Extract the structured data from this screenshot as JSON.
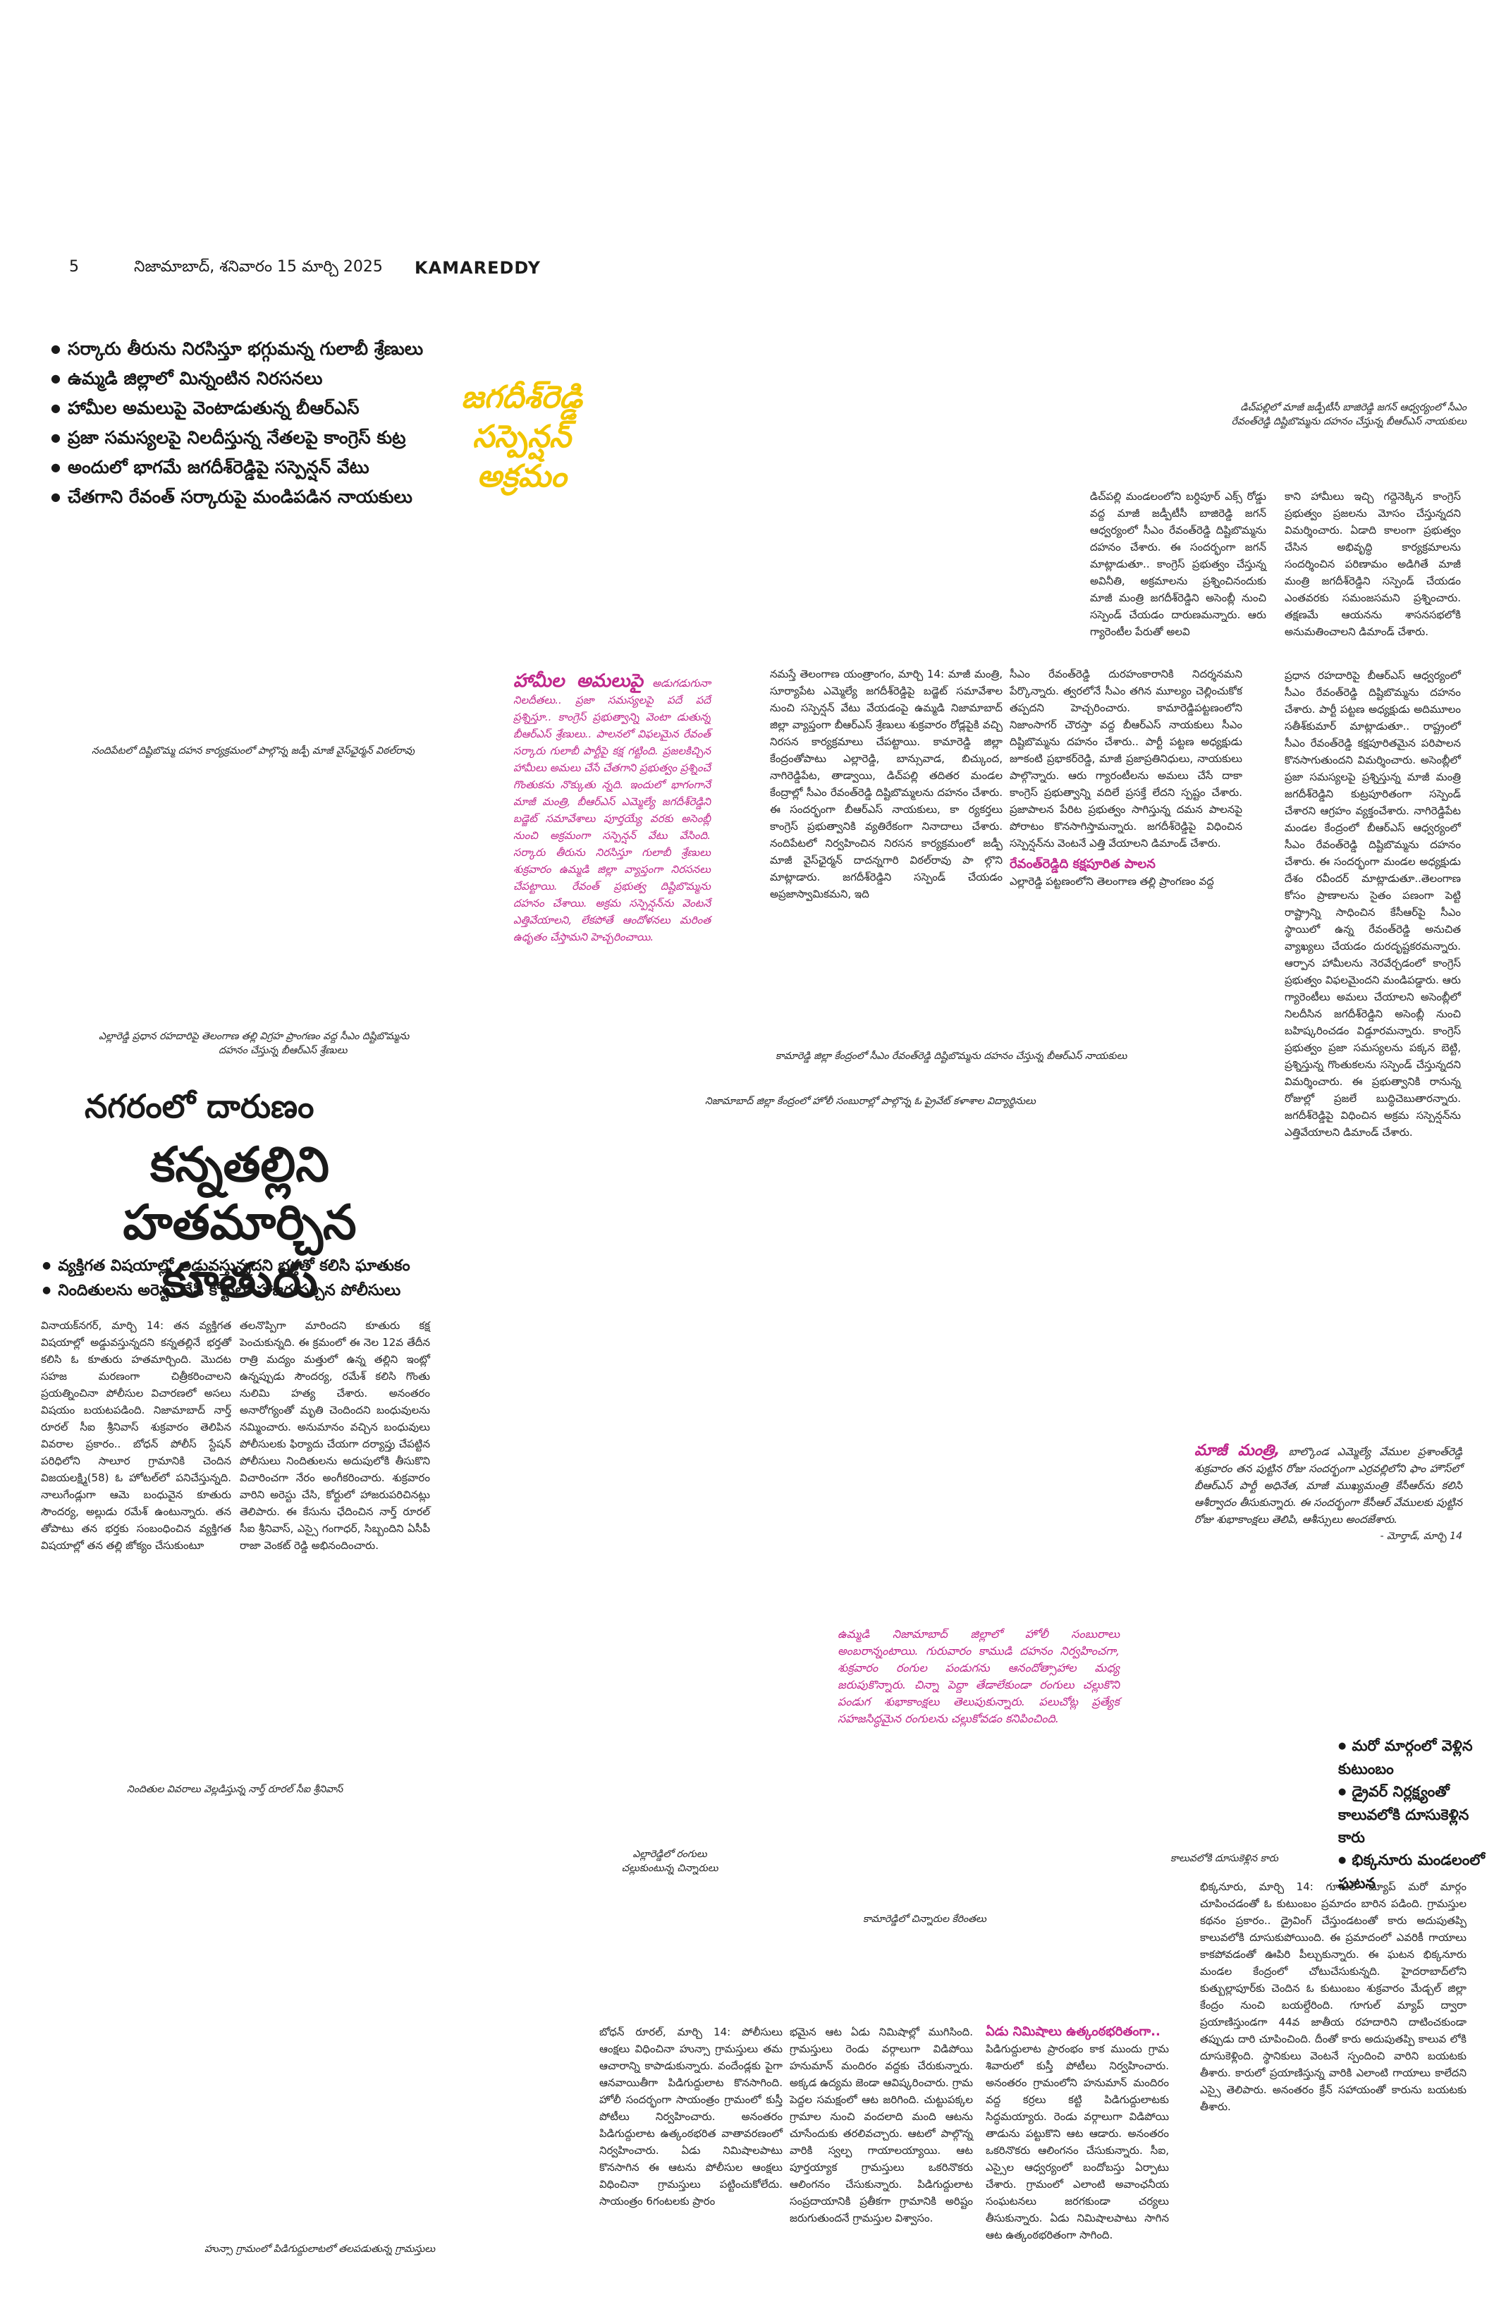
{
  "masthead": {
    "page_number": "5",
    "dateline": "నిజామాబాద్, శనివారం 15 మార్చి 2025",
    "section": "KAMAREDDY"
  },
  "story1": {
    "bullets": [
      "సర్కారు తీరును నిరసిస్తూ భగ్గుమన్న గులాబీ శ్రేణులు",
      "ఉమ్మడి జిల్లాలో మిన్నంటిన నిరసనలు",
      "హామీల అమలుపై వెంటాడుతున్న బీఆర్ఎస్",
      "ప్రజా సమస్యలపై నిలదీస్తున్న నేతలపై కాంగ్రెస్ కుట్ర",
      "అందులో భాగమే జగదీశ్‌రెడ్డిపై సస్పెన్షన్ వేటు",
      "చేతగాని రేవంత్ సర్కారుపై మండిపడిన నాయకులు"
    ],
    "kicker_lines": [
      "జగదీశ్‌రెడ్డి",
      "సస్పెన్షన్",
      "అక్రమం"
    ],
    "caption_top_right_1": "డిచ్‌పల్లిలో మాజీ జడ్పీటీసీ బాజిరెడ్డి జగన్ ఆధ్వర్యంలో సీఎం",
    "caption_top_right_2": "రేవంత్‌రెడ్డి దిష్టిబొమ్మను దహనం చేస్తున్న బీఆర్ఎస్ నాయకులు",
    "caption_nandipet": "నందిపేటలో దిష్టిబొమ్మ దహన కార్యక్రమంలో పాల్గొన్న జడ్పీ మాజీ వైస్‌ఛైర్మన్ విఠల్‌రావు",
    "caption_yellareddy_1": "ఎల్లారెడ్డి ప్రధాన రహదారిపై తెలంగాణ తల్లి విగ్రహ ప్రాంగణం వద్ద సీఎం దిష్టిబొమ్మను",
    "caption_yellareddy_2": "దహనం చేస్తున్న బీఆర్ఎస్ శ్రేణులు",
    "caption_kamareddy": "కామారెడ్డి జిల్లా కేంద్రంలో సీఎం రేవంత్‌రెడ్డి దిష్టిబొమ్మను దహనం చేస్తున్న బీఆర్ఎస్ నాయకులు",
    "caption_nizamabad": "నిజామాబాద్ జిల్లా కేంద్రంలో హోలీ సంబురాల్లో పాల్గొన్న ఓ ప్రైవేట్ కళాశాల విద్యార్థినులు",
    "col_pink_lead": "హామీల అమలుపై",
    "col_pink": "అడుగడుగునా నిలదీతలు.. ప్రజా సమస్యలపై పదే పదే ప్రశ్నిస్తూ.. కాంగ్రెస్ ప్రభుత్వాన్ని వెంటా డుతున్న బీఆర్ఎస్ శ్రేణులు.. పాలనలో విఫలమైన రేవంత్ సర్కారు గులాబీ పార్టీపై కక్ష గట్టింది. ప్రజలకిచ్చిన హామీలు అమలు చేసే చేతగాని ప్రభుత్వం ప్రశ్నించే గొంతుకను నొక్కుతు న్నది. ఇందులో భాగంగానే మాజీ మంత్రి, బీఆర్ఎస్ ఎమ్మెల్యే జగదీశ్‌రెడ్డిని బడ్జెట్ సమావేశాలు పూర్తయ్యే వరకు అసెంబ్లీ నుంచి అక్రమంగా సస్పెన్షన్ వేటు వేసింది. సర్కారు తీరును నిరసిస్తూ గులాబీ శ్రేణులు శుక్రవారం ఉమ్మడి జిల్లా వ్యాప్తంగా నిరసనలు చేపట్టాయి. రేవంత్ ప్రభుత్వ దిష్టిబొమ్మను దహనం చేశాయి. అక్రమ సస్పెన్షన్‌ను వెంటనే ఎత్తివేయాలని, లేకపోతే ఆందోళనలు మరింత ఉధృతం చేస్తామని హెచ్చరించాయి.",
    "col2": "నమస్తే తెలంగాణ యంత్రాంగం, మార్చి 14: మాజీ మంత్రి, సూర్యాపేట ఎమ్మెల్యే జగదీశ్‌రెడ్డిపై బడ్జెట్ సమావేశాల నుంచి సస్పెన్షన్ వేటు వేయడంపై ఉమ్మడి నిజామాబాద్ జిల్లా వ్యాప్తంగా బీఆర్ఎస్ శ్రేణులు శుక్రవారం రోడ్లపైకి వచ్చి నిరసన కార్యక్రమాలు చేపట్టాయి. కామారెడ్డి జిల్లా కేంద్రంతోపాటు ఎల్లారెడ్డి, బాన్సువాడ, బిచ్కుంద, నాగిరెడ్డిపేట, తాడ్వాయి, డిచ్‌పల్లి తదితర మండల కేంద్రాల్లో సీఎం రేవంత్‌రెడ్డి దిష్టిబొమ్మలను దహనం చేశారు. ఈ సందర్భంగా బీఆర్ఎస్ నాయకులు, కా ర్యకర్తలు కాంగ్రెస్ ప్రభుత్వానికి వ్యతిరేకంగా నినాదాలు చేశారు. నందిపేటలో నిర్వహించిన నిరసన కార్యక్రమంలో జడ్పీ మాజీ వైస్‌ఛైర్మన్ దాదన్నగారి విఠల్‌రావు పా ల్గొని మాట్లాడారు. జగదీశ్‌రెడ్డిని సస్పెండ్ చేయడం అప్రజాస్వామికమని, ఇది",
    "col3": "సీఎం రేవంత్‌రెడ్డి దురహంకారానికి నిదర్శనమని పేర్కొన్నారు. త్వరలోనే సీఎం తగిన మూల్యం చెల్లించుకోక తప్పదని హెచ్చరించారు. కామారెడ్డిపట్టణంలోని నిజాంసాగర్ చౌరస్తా వద్ద బీఆర్ఎస్ నాయకులు సీఎం దిష్టిబొమ్మను దహనం చేశారు.. పార్టీ పట్టణ అధ్యక్షుడు జూకంటి ప్రభాకర్‌రెడ్డి, మాజీ ప్రజాప్రతినిధులు, నాయకులు పాల్గొన్నారు. ఆరు గ్యారంటీలను అమలు చేసే దాకా కాంగ్రెస్ ప్రభుత్వాన్ని వదిలే ప్రసక్తే లేదని స్పష్టం చేశారు. ప్రజాపాలన పేరిట ప్రభుత్వం సాగిస్తున్న దమన పాలనపై పోరాటం కొనసాగిస్తామన్నారు. జగదీశ్‌రెడ్డిపై విధించిన సస్పెన్షన్‌ను వెంటనే ఎత్తి వేయాలని డిమాండ్ చేశారు.",
    "col3_sub": "రేవంత్‌రెడ్డిది కక్షపూరిత పాలన",
    "col3_tail": "ఎల్లారెడ్డి పట్టణంలోని తెలంగాణ తల్లి ప్రాంగణం వద్ద",
    "col4": "డిచ్‌పల్లి మండలంలోని బర్ధిపూర్ ఎక్స్ రోడ్డు వద్ద మాజీ జడ్పీటీసీ బాజిరెడ్డి జగన్ ఆధ్వర్యంలో సీఎం రేవంత్‌రెడ్డి దిష్టిబొమ్మను దహనం చేశారు. ఈ సందర్భంగా జగన్ మాట్లాడుతూ.. కాంగ్రెస్ ప్రభుత్వం చేస్తున్న అవినీతి, అక్రమాలను ప్రశ్నించినందుకు మాజీ మంత్రి జగదీశ్‌రెడ్డిని అసెంబ్లీ నుంచి సస్పెండ్ చేయడం దారుణమన్నారు. ఆరు గ్యారెంటీల పేరుతో అలవి",
    "col5": "కాని హామీలు ఇచ్చి గద్దెనెక్కిన కాంగ్రెస్ ప్రభుత్వం ప్రజలను మోసం చేస్తున్నదని విమర్శించారు. ఏడాది కాలంగా ప్రభుత్వం చేసిన అభివృద్ధి కార్యక్రమాలను సందర్శించిన పరిణామం అడిగితే మాజీ మంత్రి జగదీశ్‌రెడ్డిని సస్పెండ్ చేయడం ఎంతవరకు సమంజసమని ప్రశ్నించారు. తక్షణమే ఆయనను శాసనసభలోకి అనుమతించాలని డిమాండ్ చేశారు.",
    "col6": "ప్రధాన రహదారిపై బీఆర్ఎస్ ఆధ్వర్యంలో సీఎం రేవంత్‌రెడ్డి దిష్టిబొమ్మను దహనం చేశారు. పార్టీ పట్టణ అధ్యక్షుడు అదిమూలం సతీశ్‌కుమార్ మాట్లాడుతూ.. రాష్ట్రంలో సీఎం రేవంత్‌రెడ్డి కక్షపూరితమైన పరిపాలన కొనసాగుతుందని విమర్శించారు. అసెంబ్లీలో ప్రజా సమస్యలపై ప్రశ్నిస్తున్న మాజీ మంత్రి జగదీశ్‌రెడ్డిని కుట్రపూరితంగా సస్పెండ్ చేశారని ఆగ్రహం వ్యక్తంచేశారు. నాగిరెడ్డిపేట మండల కేంద్రంలో బీఆర్ఎస్ ఆధ్వర్యంలో సీఎం రేవంత్‌రెడ్డి దిష్టిబొమ్మను దహనం చేశారు. ఈ సందర్భంగా మండల అధ్యక్షుడు దేశం రవీందర్ మాట్లాడుతూ..తెలంగాణ కోసం ప్రాణాలను సైతం పణంగా పెట్టి రాష్ట్రాన్ని సాధించిన కేసీఆర్‌పై సీఎం స్థాయిలో ఉన్న రేవంత్‌రెడ్డి అనుచిత వ్యాఖ్యలు చేయడం దురదృష్టకరమన్నారు. ఆర్పాన హామీలను నెరవేర్చడంలో కాంగ్రెస్ ప్రభుత్వం విఫలమైందని మండిపడ్డారు. ఆరు గ్యారెంటీలు అమలు చేయాలని అసెంబ్లీలో నిలదీసిన జగదీశ్‌రెడ్డిని అసెంబ్లీ నుంచి బహిష్కరించడం విడ్డూరమన్నారు. కాంగ్రెస్ ప్రభుత్వం ప్రజా సమస్యలను పక్కన బెట్టి, ప్రశ్నిస్తున్న గొంతుకలను సస్పెండ్ చేస్తున్నదని విమర్శించారు. ఈ ప్రభుత్వానికి రానున్న రోజుల్లో ప్రజలే బుద్ధిచెబుతారన్నారు. జగదీశ్‌రెడ్డిపై విధించిన అక్రమ సస్పెన్షన్‌ను ఎత్తివేయాలని డిమాండ్ చేశారు."
  },
  "story2": {
    "subhead": "నగరంలో దారుణం",
    "headline_1": "కన్నతల్లిని",
    "headline_2": "హతమార్చిన కూతురు",
    "bullets": [
      "వ్యక్తిగత విషయాల్లో అడ్డువస్తున్నదని భర్తతో కలిసి ఘాతుకం",
      "నిందితులను అరెస్టు చేసి కోర్టులో హాజరుపర్చిన పోలీసులు"
    ],
    "col1": "వినాయక్‌నగర్, మార్చి 14: తన వ్యక్తిగత విషయాల్లో అడ్డువస్తున్నదని కన్నతల్లినే భర్తతో కలిసి ఓ కూతురు హతమార్చింది. మొదట సహజ మరణంగా చిత్రీకరించాలని ప్రయత్నించినా పోలీసుల విచారణలో అసలు విషయం బయటపడింది. నిజామాబాద్ నార్త్ రూరల్ సీఐ శ్రీనివాస్ శుక్రవారం తెలిపిన వివరాల ప్రకారం.. బోధన్ పోలీస్ స్టేషన్ పరిధిలోని సాలూర గ్రామానికి చెందిన విజయలక్ష్మి(58) ఓ హోటల్‌లో పనిచేస్తున్నది. నాలుగేండ్లుగా ఆమె బంధువైన కూతురు సౌందర్య, అల్లుడు రమేశ్ ఉంటున్నారు. తన తోపాటు తన భర్తకు సంబంధించిన వ్యక్తిగత విషయాల్లో తన తల్లి జోక్యం చేసుకుంటూ",
    "col2": "తలనొప్పిగా మారిందని కూతురు కక్ష పెంచుకున్నది. ఈ క్రమంలో ఈ నెల 12వ తేదీన రాత్రి మద్యం మత్తులో ఉన్న తల్లిని ఇంట్లో ఉన్నప్పుడు సౌందర్య, రమేశ్ కలిసి గొంతు నులిమి హత్య చేశారు. అనంతరం అనారోగ్యంతో మృతి చెందిందని బంధువులను నమ్మించారు. అనుమానం వచ్చిన బంధువులు పోలీసులకు ఫిర్యాదు చేయగా దర్యాప్తు చేపట్టిన పోలీసులు నిందితులను అదుపులోకి తీసుకొని విచారించగా నేరం అంగీకరించారు. శుక్రవారం వారిని అరెస్టు చేసి, కోర్టులో హాజరుపరిచినట్లు తెలిపారు. ఈ కేసును ఛేదించిన నార్త్ రూరల్ సీఐ శ్రీనివాస్, ఎస్సై గంగాధర్, సిబ్బందిని ఏసీపీ రాజా వెంకట్ రెడ్డి అభినందించారు.",
    "caption": "నిందితుల వివరాలు వెల్లడిస్తున్న నార్త్ రూరల్ సీఐ శ్రీనివాస్"
  },
  "story3": {
    "lead": "మాజీ మంత్రి,",
    "text": "బాల్కొండ ఎమ్మెల్యే వేముల ప్రశాంత్‌రెడ్డి శుక్రవారం తన పుట్టిన రోజు సందర్భంగా ఎర్రవల్లిలోని ఫాం హౌస్‌లో బీఆర్ఎస్ పార్టీ అధినేత, మాజీ ముఖ్యమంత్రి కేసీఆర్‌ను కలిసి ఆశీర్వాదం తీసుకున్నారు. ఈ సందర్భంగా కేసీఆర్ వేములకు పుట్టిన రోజు శుభాకాంక్షలు తెలిపి, ఆశీస్సులు అందజేశారు.",
    "dateline": "- మోర్తాడ్, మార్చి 14"
  },
  "story4": {
    "text": "ఉమ్మడి నిజామాబాద్ జిల్లాలో హోలీ సంబురాలు అంబరాన్నంటాయి. గురువారం కాముడి దహనం నిర్వహించగా, శుక్రవారం రంగుల పండుగను ఆనందోత్సాహాల మధ్య జరుపుకొన్నారు. చిన్నా పెద్దా తేడాలేకుండా రంగులు చల్లుకొని పండుగ శుభాకాంక్షలు తెలుపుకున్నారు. పలుచోట్ల ప్రత్యేక సహజసిద్ధమైన రంగులను చల్లుకోవడం కనిపించింది.",
    "caption_yellareddy_1": "ఎల్లారెడ్డిలో రంగులు",
    "caption_yellareddy_2": "చల్లుకుంటున్న చిన్నారులు",
    "caption_kamareddy": "కామారెడ్డిలో చిన్నారుల కేరింతలు"
  },
  "story5": {
    "bullets": [
      "మరో మార్గంలో వెళ్లిన కుటుంబం",
      "డ్రైవర్ నిర్లక్ష్యంతో కాలువలోకి దూసుకెళ్లిన కారు",
      "భిక్కనూరు మండలంలో ఘటన"
    ],
    "caption": "కాలువలోకి దూసుకెళ్లిన కారు",
    "text": "భిక్కనూరు, మార్చి 14: గూగుల్ మ్యాప్ మరో మార్గం చూపించడంతో ఓ కుటుంబం ప్రమాదం బారిన పడింది. గ్రామస్తుల కథనం ప్రకారం.. డ్రైవింగ్ చేస్తుండటంతో కారు అదుపుతప్పి కాలువలోకి దూసుకుపోయింది. ఈ ప్రమాదంలో ఎవరికీ గాయాలు కాకపోవడంతో ఊపిరి పీల్చుకున్నారు. ఈ ఘటన భిక్కనూరు మండల కేంద్రంలో చోటుచేసుకున్నది. హైదరాబాద్‌లోని కుత్బుల్లాపూర్‌కు చెందిన ఓ కుటుంబం శుక్రవారం మేడ్చల్ జిల్లా కేంద్రం నుంచి బయల్దేరింది. గూగుల్ మ్యాప్ ద్వారా ప్రయాణిస్తుండగా 44వ జాతీయ రహదారిని దాటించకుండా తప్పుడు దారి చూపించింది. దీంతో కారు అదుపుతప్పి కాలువ లోకి దూసుకెళ్లింది. స్థానికులు వెంటనే స్పందించి వారిని బయటకు తీశారు. కారులో ప్రయాణిస్తున్న వారికి ఎలాంటి గాయాలు కాలేదని ఎస్సై తెలిపారు. అనంతరం క్రేన్ సహాయంతో కారును బయటకు తీశారు."
  },
  "story6": {
    "col1": "బోధన్ రూరల్, మార్చి 14: పోలీసులు ఆంక్షలు విధించినా హున్సా గ్రామస్తులు తమ ఆచారాన్ని కాపాడుకున్నారు. వందేండ్లకు పైగా ఆనవాయితీగా పిడిగుద్దులాట కొనసాగింది. హోలీ సందర్భంగా సాయంత్రం గ్రామంలో కుస్తీ పోటీలు నిర్వహించారు. అనంతరం పిడిగుద్దులాట ఉత్కంఠభరిత వాతావరణంలో నిర్వహించారు. ఏడు నిమిషాలపాటు కొనసాగిన ఈ ఆటను పోలీసుల ఆంక్షలు విధించినా గ్రామస్తులు పట్టించుకోలేదు. సాయంత్రం 6గంటలకు ప్రారం",
    "col2": "భమైన ఆట ఏడు నిమిషాల్లో ముగిసింది. గ్రామస్తులు రెండు వర్గాలుగా విడిపోయి హనుమాన్ మందిరం వద్దకు చేరుకున్నారు. అక్కడ ఉద్యమ జెండా ఆవిష్కరించారు. గ్రామ పెద్దల సమక్షంలో ఆట జరిగింది. చుట్టుపక్కల గ్రామాల నుంచి వందలాది మంది ఆటను చూసేందుకు తరలివచ్చారు. ఆటలో పాల్గొన్న వారికి స్వల్ప గాయాలయ్యాయి. ఆట పూర్తయ్యాక గ్రామస్తులు ఒకరినొకరు ఆలింగనం చేసుకున్నారు. పిడిగుద్దులాట సంప్రదాయానికి ప్రతీకగా గ్రామానికి అరిష్టం జరుగుతుందనే గ్రామస్తుల విశ్వాసం.",
    "col3_sub": "ఏడు నిమిషాలు ఉత్కంఠభరితంగా..",
    "col3": "పిడిగుద్దులాట ప్రారంభం కాక ముందు గ్రామ శివారులో కుస్తీ పోటీలు నిర్వహించారు. అనంతరం గ్రామంలోని హనుమాన్ మందిరం వద్ద కర్రలు కట్టి పిడిగుద్దులాటకు సిద్ధమయ్యారు. రెండు వర్గాలుగా విడిపోయి తాడును పట్టుకొని ఆట ఆడారు. అనంతరం ఒకరినొకరు ఆలింగనం చేసుకున్నారు. సీఐ, ఎస్సైల ఆధ్వర్యంలో బందోబస్తు ఏర్పాటు చేశారు. గ్రామంలో ఎలాంటి అవాంఛనీయ సంఘటనలు జరగకుండా చర్యలు తీసుకున్నారు. ఏడు నిమిషాలపాటు సాగిన ఆట ఉత్కంఠభరితంగా సాగింది.",
    "caption": "హున్సా గ్రామంలో పిడిగుద్దులాటలో తలపడుతున్న గ్రామస్తులు"
  }
}
